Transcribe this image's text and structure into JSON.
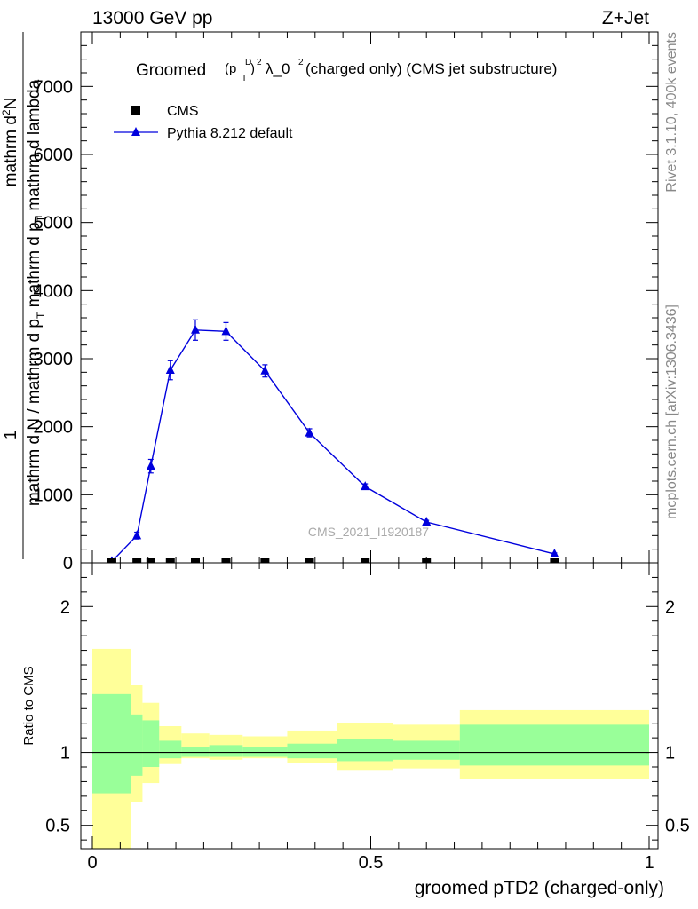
{
  "header": {
    "left_label": "13000 GeV pp",
    "right_label": "Z+Jet"
  },
  "side": {
    "rivet_label": "Rivet 3.1.10,  400k events",
    "site_label": "mcplots.cern.ch [arXiv:1306.3436]"
  },
  "chart_data": [
    {
      "type": "line",
      "title": "Groomed(p_T^D)^2 λ_0^2  (charged only) (CMS jet substructure)",
      "title_main": "Groomed",
      "title_rest": "λ_0",
      "title_tail": "  (charged only) (CMS jet substructure)",
      "title_sup_d": "D",
      "title_sub_t": "T",
      "title_sup_2": "2",
      "title_p": "(p",
      "title_close": ")",
      "ylabel_numerator": "mathrm d²N",
      "ylabel_denominator": "mathrm d N / mathrm d p_T mathrm d p_T mathrm d lambda",
      "ylabel_one": "1",
      "ylabel_num_main": "mathrm d",
      "ylabel_num_sup": "2",
      "ylabel_num_tail": "N",
      "ylabel_den_a": "mathrm d N / mathrm d p",
      "ylabel_den_b": "mathrm d p",
      "ylabel_den_c": "mathrm d lambda",
      "ylabel_den_sub": "T",
      "xlim": [
        0,
        1
      ],
      "ylim": [
        0,
        7800
      ],
      "yticks": [
        0,
        1000,
        2000,
        3000,
        4000,
        5000,
        6000,
        7000
      ],
      "ytick_labels": [
        "0",
        "1000",
        "2000",
        "3000",
        "4000",
        "5000",
        "6000",
        "7000"
      ],
      "watermark": "CMS_2021_I1920187",
      "legend_position": "top-left",
      "series": [
        {
          "name": "CMS",
          "marker": "square",
          "color": "#000000",
          "x": [
            0.035,
            0.08,
            0.105,
            0.14,
            0.185,
            0.24,
            0.31,
            0.39,
            0.49,
            0.6,
            0.83
          ],
          "y": [
            0,
            0,
            0,
            0,
            0,
            0,
            0,
            0,
            0,
            0,
            0
          ]
        },
        {
          "name": "Pythia 8.212 default",
          "marker": "triangle",
          "color": "#0000dd",
          "x": [
            0.035,
            0.08,
            0.105,
            0.14,
            0.185,
            0.24,
            0.31,
            0.39,
            0.49,
            0.6,
            0.83
          ],
          "y": [
            20,
            400,
            1420,
            2830,
            3420,
            3400,
            2820,
            1910,
            1120,
            600,
            130
          ],
          "err": [
            15,
            50,
            100,
            140,
            150,
            130,
            90,
            60,
            40,
            25,
            15
          ]
        }
      ]
    },
    {
      "type": "area",
      "ylabel": "Ratio to CMS",
      "xlabel": "groomed pTD2 (charged-only)",
      "xlim": [
        0,
        1
      ],
      "ylim": [
        0.34,
        2.3
      ],
      "xticks": [
        0,
        0.5,
        1
      ],
      "xtick_labels": [
        "0",
        "0.5",
        "1"
      ],
      "yticks": [
        0.5,
        1,
        2
      ],
      "ytick_labels": [
        "0.5",
        "1",
        "2"
      ],
      "reference_line": 1,
      "bins": [
        {
          "x0": 0.0,
          "x1": 0.07,
          "inner": [
            0.72,
            1.4
          ],
          "outer": [
            0.34,
            1.71
          ]
        },
        {
          "x0": 0.07,
          "x1": 0.09,
          "inner": [
            0.84,
            1.26
          ],
          "outer": [
            0.66,
            1.46
          ]
        },
        {
          "x0": 0.09,
          "x1": 0.12,
          "inner": [
            0.9,
            1.22
          ],
          "outer": [
            0.79,
            1.34
          ]
        },
        {
          "x0": 0.12,
          "x1": 0.16,
          "inner": [
            0.96,
            1.08
          ],
          "outer": [
            0.92,
            1.18
          ]
        },
        {
          "x0": 0.16,
          "x1": 0.21,
          "inner": [
            0.97,
            1.04
          ],
          "outer": [
            0.96,
            1.13
          ]
        },
        {
          "x0": 0.21,
          "x1": 0.27,
          "inner": [
            0.97,
            1.05
          ],
          "outer": [
            0.95,
            1.12
          ]
        },
        {
          "x0": 0.27,
          "x1": 0.35,
          "inner": [
            0.97,
            1.04
          ],
          "outer": [
            0.96,
            1.11
          ]
        },
        {
          "x0": 0.35,
          "x1": 0.44,
          "inner": [
            0.96,
            1.06
          ],
          "outer": [
            0.93,
            1.15
          ]
        },
        {
          "x0": 0.44,
          "x1": 0.54,
          "inner": [
            0.94,
            1.09
          ],
          "outer": [
            0.88,
            1.2
          ]
        },
        {
          "x0": 0.54,
          "x1": 0.66,
          "inner": [
            0.95,
            1.08
          ],
          "outer": [
            0.89,
            1.19
          ]
        },
        {
          "x0": 0.66,
          "x1": 1.0,
          "inner": [
            0.91,
            1.19
          ],
          "outer": [
            0.82,
            1.29
          ]
        }
      ],
      "colors": {
        "inner": "#99ff99",
        "outer": "#ffff99"
      }
    }
  ]
}
